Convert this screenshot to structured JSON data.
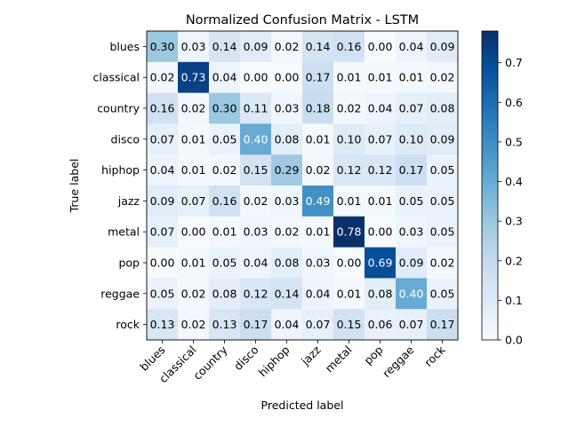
{
  "chart_data": {
    "type": "heatmap",
    "title": "Normalized Confusion Matrix - LSTM",
    "xlabel": "Predicted label",
    "ylabel": "True label",
    "x_categories": [
      "blues",
      "classical",
      "country",
      "disco",
      "hiphop",
      "jazz",
      "metal",
      "pop",
      "reggae",
      "rock"
    ],
    "y_categories": [
      "blues",
      "classical",
      "country",
      "disco",
      "hiphop",
      "jazz",
      "metal",
      "pop",
      "reggae",
      "rock"
    ],
    "values": [
      [
        0.3,
        0.03,
        0.14,
        0.09,
        0.02,
        0.14,
        0.16,
        0.0,
        0.04,
        0.09
      ],
      [
        0.02,
        0.73,
        0.04,
        0.0,
        0.0,
        0.17,
        0.01,
        0.01,
        0.01,
        0.02
      ],
      [
        0.16,
        0.02,
        0.3,
        0.11,
        0.03,
        0.18,
        0.02,
        0.04,
        0.07,
        0.08
      ],
      [
        0.07,
        0.01,
        0.05,
        0.4,
        0.08,
        0.01,
        0.1,
        0.07,
        0.1,
        0.09
      ],
      [
        0.04,
        0.01,
        0.02,
        0.15,
        0.29,
        0.02,
        0.12,
        0.12,
        0.17,
        0.05
      ],
      [
        0.09,
        0.07,
        0.16,
        0.02,
        0.03,
        0.49,
        0.01,
        0.01,
        0.05,
        0.05
      ],
      [
        0.07,
        0.0,
        0.01,
        0.03,
        0.02,
        0.01,
        0.78,
        0.0,
        0.03,
        0.05
      ],
      [
        0.0,
        0.01,
        0.05,
        0.04,
        0.08,
        0.03,
        0.0,
        0.69,
        0.09,
        0.02
      ],
      [
        0.05,
        0.02,
        0.08,
        0.12,
        0.14,
        0.04,
        0.01,
        0.08,
        0.4,
        0.05
      ],
      [
        0.13,
        0.02,
        0.13,
        0.17,
        0.04,
        0.07,
        0.15,
        0.06,
        0.07,
        0.17
      ]
    ],
    "colormap": "Blues",
    "color_range": [
      0,
      0.78
    ],
    "colorbar_ticks": [
      "0.0",
      "0.1",
      "0.2",
      "0.3",
      "0.4",
      "0.5",
      "0.6",
      "0.7"
    ],
    "colorbar_tick_values": [
      0.0,
      0.1,
      0.2,
      0.3,
      0.4,
      0.5,
      0.6,
      0.7
    ],
    "grid": false,
    "legend": "colorbar-right"
  }
}
